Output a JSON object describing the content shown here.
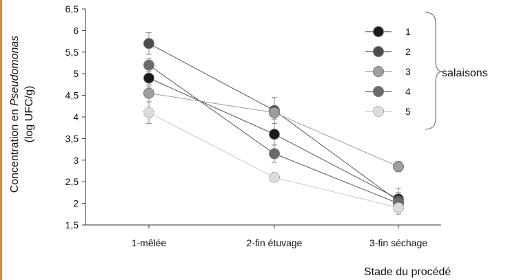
{
  "chart_data": {
    "type": "line",
    "title": "",
    "xlabel": "Stade du procédé",
    "ylabel_line1_prefix": "Concentration en ",
    "ylabel_line1_italic": "Pseudomonas",
    "ylabel_line2": "(log UFC/g)",
    "categories": [
      "1-mêlée",
      "2-fin étuvage",
      "3-fin séchage"
    ],
    "ylim": [
      1.5,
      6.5
    ],
    "yticks": [
      "1,5",
      "2",
      "2,5",
      "3",
      "3,5",
      "4",
      "4,5",
      "5",
      "5,5",
      "6",
      "6,5"
    ],
    "ytick_values": [
      1.5,
      2,
      2.5,
      3,
      3.5,
      4,
      4.5,
      5,
      5.5,
      6,
      6.5
    ],
    "grid": false,
    "legend_position": "top-right",
    "group_label": "salaisons",
    "series": [
      {
        "name": "1",
        "color": "#1a1a1a",
        "line": "#555555",
        "values": [
          4.9,
          3.6,
          2.1
        ],
        "err": [
          0.2,
          0.25,
          0.15
        ],
        "dashed_marker": false
      },
      {
        "name": "2",
        "color": "#4d4d4d",
        "line": "#555555",
        "values": [
          5.7,
          4.15,
          2.05
        ],
        "err": [
          0.25,
          0.3,
          0.3
        ],
        "dashed_marker": false
      },
      {
        "name": "3",
        "color": "#9e9e9e",
        "line": "#9a9a9a",
        "values": [
          4.55,
          4.1,
          2.85
        ],
        "err": [
          0.2,
          0.15,
          0.12
        ],
        "dashed_marker": false
      },
      {
        "name": "4",
        "color": "#6b6b6b",
        "line": "#5a5a5a",
        "values": [
          5.2,
          3.15,
          2.0
        ],
        "err": [
          0.15,
          0.2,
          0.15
        ],
        "dashed_marker": false
      },
      {
        "name": "5",
        "color": "#dcdcdc",
        "line": "#c8c8c8",
        "values": [
          4.1,
          2.6,
          1.9
        ],
        "err": [
          0.25,
          0.1,
          0.1
        ],
        "dashed_marker": true
      }
    ]
  }
}
